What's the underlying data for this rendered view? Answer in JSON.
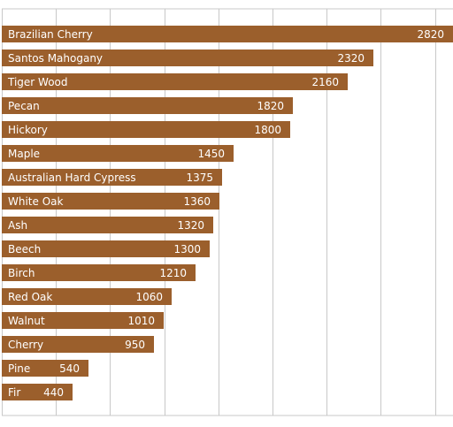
{
  "chart_data": {
    "type": "bar",
    "orientation": "horizontal",
    "title": "",
    "xlabel": "",
    "ylabel": "",
    "xlim": [
      0,
      2820
    ],
    "grid": true,
    "legend": "none",
    "bar_color": "#9b5f2c",
    "label_color": "#ffffff",
    "grid_color": "#c8c8c8",
    "categories": [
      "Brazilian Cherry",
      "Santos Mahogany",
      "Tiger Wood",
      "Pecan",
      "Hickory",
      "Maple",
      "Australian Hard Cypress",
      "White Oak",
      "Ash",
      "Beech",
      "Birch",
      "Red Oak",
      "Walnut",
      "Cherry",
      "Pine",
      "Fir"
    ],
    "values": [
      2820,
      2320,
      2160,
      1820,
      1800,
      1450,
      1375,
      1360,
      1320,
      1300,
      1210,
      1060,
      1010,
      950,
      540,
      440
    ],
    "value_labels": [
      "2820",
      "2320",
      "2160",
      "1820",
      "1800",
      "1450",
      "1375",
      "1360",
      "1320",
      "1300",
      "1210",
      "1060",
      "1010",
      "950",
      "540",
      "440"
    ]
  }
}
